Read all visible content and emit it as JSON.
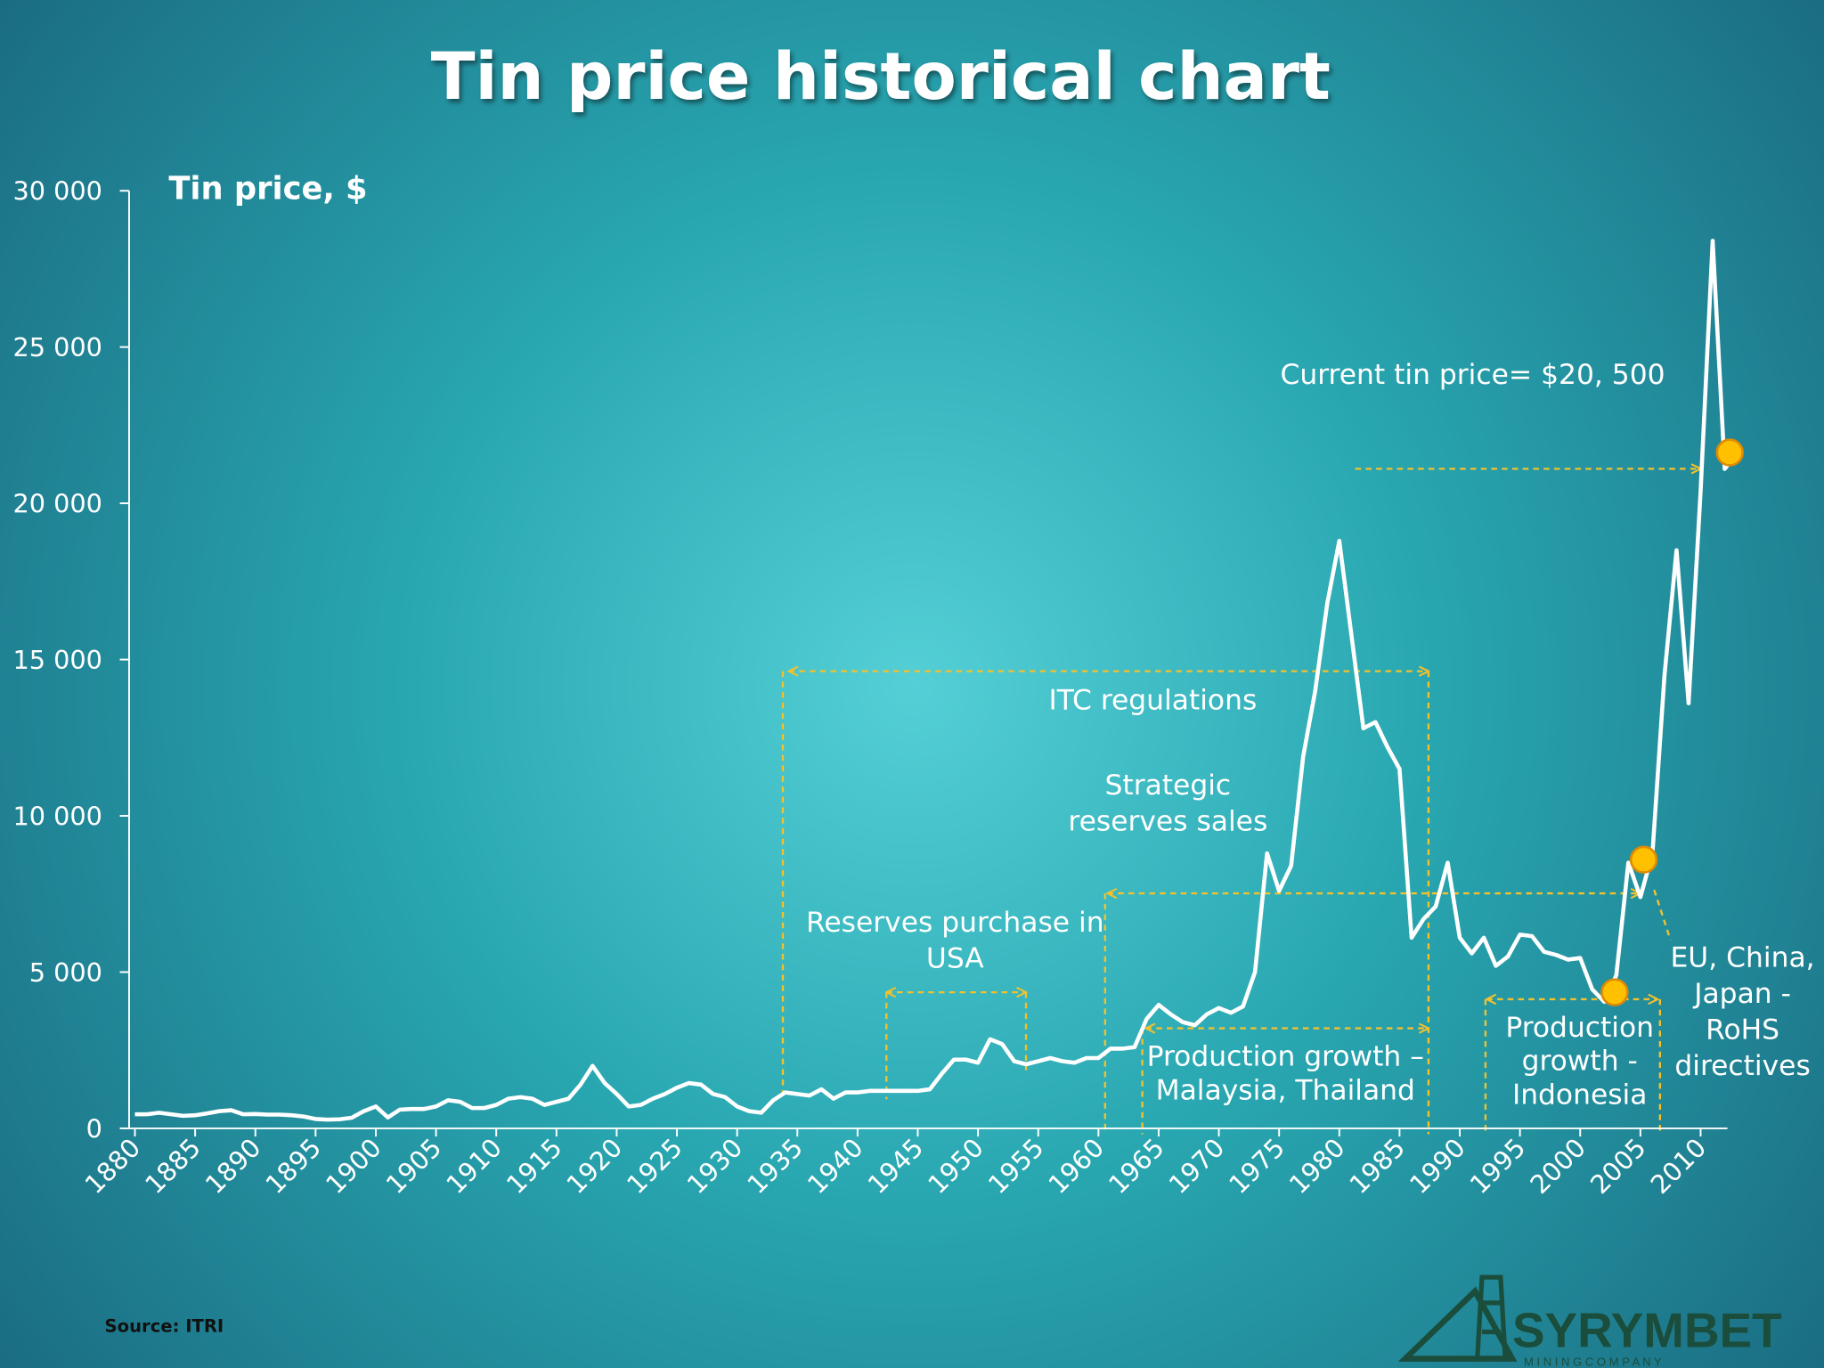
{
  "chart_data": {
    "type": "line",
    "title": "Tin price historical chart",
    "y_label": "Tin price, $",
    "source": "Source: ITRI",
    "color": "#ffffff",
    "x": [
      1880,
      1881,
      1882,
      1883,
      1884,
      1885,
      1886,
      1887,
      1888,
      1889,
      1890,
      1891,
      1892,
      1893,
      1894,
      1895,
      1896,
      1897,
      1898,
      1899,
      1900,
      1901,
      1902,
      1903,
      1904,
      1905,
      1906,
      1907,
      1908,
      1909,
      1910,
      1911,
      1912,
      1913,
      1914,
      1915,
      1916,
      1917,
      1918,
      1919,
      1920,
      1921,
      1922,
      1923,
      1924,
      1925,
      1926,
      1927,
      1928,
      1929,
      1930,
      1931,
      1932,
      1933,
      1934,
      1935,
      1936,
      1937,
      1938,
      1939,
      1940,
      1941,
      1942,
      1943,
      1944,
      1945,
      1946,
      1947,
      1948,
      1949,
      1950,
      1951,
      1952,
      1953,
      1954,
      1955,
      1956,
      1957,
      1958,
      1959,
      1960,
      1961,
      1962,
      1963,
      1964,
      1965,
      1966,
      1967,
      1968,
      1969,
      1970,
      1971,
      1972,
      1973,
      1974,
      1975,
      1976,
      1977,
      1978,
      1979,
      1980,
      1981,
      1982,
      1983,
      1984,
      1985,
      1986,
      1987,
      1988,
      1989,
      1990,
      1991,
      1992,
      1993,
      1994,
      1995,
      1996,
      1997,
      1998,
      1999,
      2000,
      2001,
      2002,
      2003,
      2004,
      2005,
      2006,
      2007,
      2008,
      2009,
      2010,
      2011,
      2012,
      2013
    ],
    "values": [
      450,
      450,
      500,
      450,
      400,
      420,
      480,
      550,
      580,
      450,
      460,
      440,
      440,
      420,
      380,
      300,
      280,
      290,
      340,
      550,
      700,
      350,
      600,
      620,
      620,
      700,
      900,
      850,
      650,
      650,
      750,
      950,
      1000,
      950,
      750,
      850,
      950,
      1400,
      2000,
      1450,
      1100,
      700,
      750,
      950,
      1100,
      1300,
      1450,
      1400,
      1100,
      1000,
      700,
      550,
      500,
      900,
      1150,
      1100,
      1050,
      1250,
      950,
      1150,
      1150,
      1200,
      1200,
      1200,
      1200,
      1200,
      1250,
      1750,
      2200,
      2200,
      2100,
      2850,
      2700,
      2150,
      2050,
      2150,
      2250,
      2150,
      2100,
      2250,
      2250,
      2550,
      2550,
      2600,
      3500,
      3950,
      3650,
      3400,
      3300,
      3650,
      3850,
      3700,
      3900,
      5000,
      8800,
      7600,
      8400,
      11900,
      14000,
      16800,
      18800,
      15800,
      12800,
      13000,
      12200,
      11500,
      6100,
      6700,
      7100,
      8500,
      6100,
      5600,
      6100,
      5200,
      5500,
      6200,
      6150,
      5650,
      5550,
      5400,
      5450,
      4450,
      4050,
      4900,
      8500,
      7400,
      8800,
      14500,
      18500,
      13600,
      20400,
      28400,
      21100,
      21600
    ],
    "xlim": [
      1880,
      2013
    ],
    "xticks": [
      1880,
      1885,
      1890,
      1895,
      1900,
      1905,
      1910,
      1915,
      1920,
      1925,
      1930,
      1935,
      1940,
      1945,
      1950,
      1955,
      1960,
      1965,
      1970,
      1975,
      1980,
      1985,
      1990,
      1995,
      2000,
      2005,
      2010
    ],
    "ylim": [
      0,
      30000
    ],
    "yticks": [
      0,
      {
        "value": 5000,
        "label": "5 000"
      },
      {
        "value": 10000,
        "label": "10 000"
      },
      {
        "value": 15000,
        "label": "15 000"
      },
      {
        "value": 20000,
        "label": "20 000"
      },
      {
        "value": 25000,
        "label": "25 000"
      },
      {
        "value": 30000,
        "label": "30 000"
      }
    ],
    "annotations": {
      "current": [
        "Current tin price= $20, 500"
      ],
      "itc": [
        "ITC regulations"
      ],
      "strategic": [
        "Strategic",
        "reserves sales"
      ],
      "purchase": [
        "Reserves purchase in",
        "USA"
      ],
      "malaysia": [
        "Production growth –",
        "Malaysia, Thailand"
      ],
      "indonesia": [
        "Production",
        "growth -",
        "Indonesia"
      ],
      "rohs": [
        "EU, China,",
        "Japan -",
        "RoHS",
        "directives"
      ]
    },
    "logo": {
      "name": "SYRYMBET",
      "tagline": "M I N I N G   C O M P A N Y"
    }
  }
}
